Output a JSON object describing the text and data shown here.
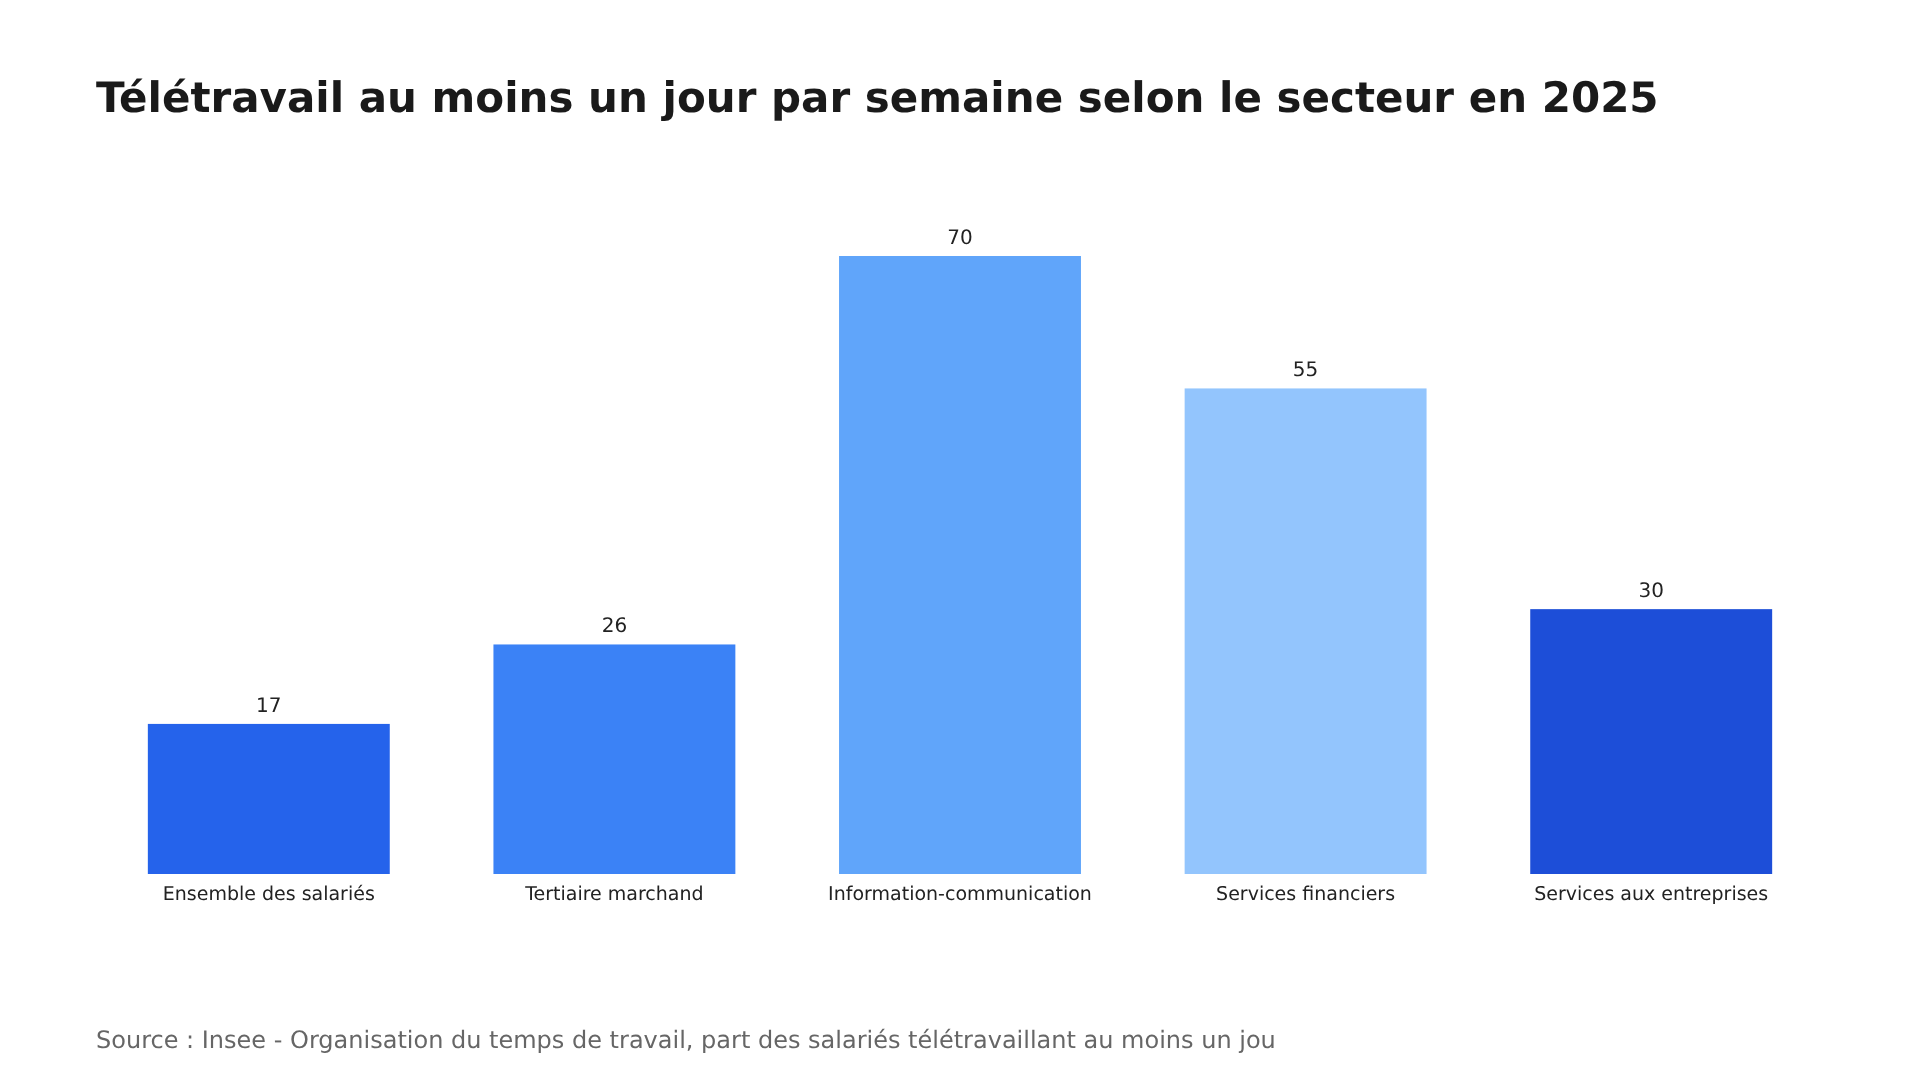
{
  "chart_data": {
    "type": "bar",
    "title": "Télétravail au moins un jour par semaine selon le secteur en 2025",
    "categories": [
      "Ensemble des salariés",
      "Tertiaire marchand",
      "Information-communication",
      "Services financiers",
      "Services aux entreprises"
    ],
    "values": [
      17,
      26,
      70,
      55,
      30
    ],
    "colors": [
      "#2563eb",
      "#3b82f6",
      "#60a5fa",
      "#93c5fd",
      "#1d4ed8"
    ],
    "data_labels": true,
    "annotations": [
      "Source : Insee - Organisation du temps de travail, part des salariés télétravaillant au moins un jou"
    ]
  }
}
